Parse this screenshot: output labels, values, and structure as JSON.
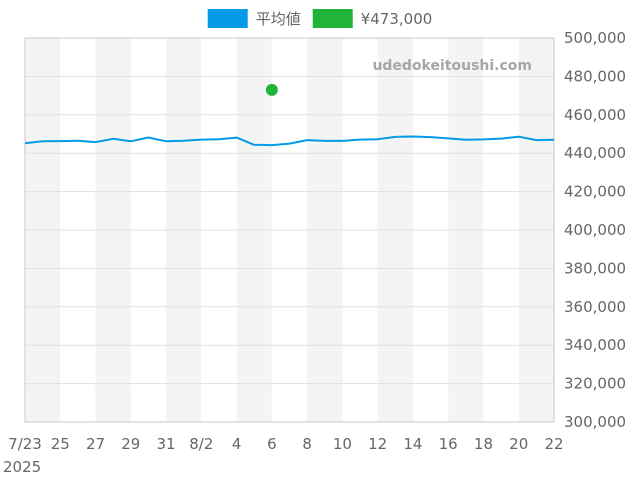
{
  "chart_data": {
    "type": "line",
    "watermark": "udedokeitoushi.com",
    "x_tick_labels": [
      "7/23",
      "25",
      "27",
      "29",
      "31",
      "8/2",
      "4",
      "6",
      "8",
      "10",
      "12",
      "14",
      "16",
      "18",
      "20",
      "22"
    ],
    "x_year_label": "2025",
    "x_dates": [
      "2025-07-23",
      "2025-07-24",
      "2025-07-25",
      "2025-07-26",
      "2025-07-27",
      "2025-07-28",
      "2025-07-29",
      "2025-07-30",
      "2025-07-31",
      "2025-08-01",
      "2025-08-02",
      "2025-08-03",
      "2025-08-04",
      "2025-08-05",
      "2025-08-06",
      "2025-08-07",
      "2025-08-08",
      "2025-08-09",
      "2025-08-10",
      "2025-08-11",
      "2025-08-12",
      "2025-08-13",
      "2025-08-14",
      "2025-08-15",
      "2025-08-16",
      "2025-08-17",
      "2025-08-18",
      "2025-08-19",
      "2025-08-20",
      "2025-08-21",
      "2025-08-22"
    ],
    "y_tick_labels": [
      "500,000",
      "480,000",
      "460,000",
      "440,000",
      "420,000",
      "400,000",
      "380,000",
      "360,000",
      "340,000",
      "320,000",
      "300,000"
    ],
    "ylim": [
      300000,
      500000
    ],
    "grid": true,
    "legend_position": "top-center",
    "series": [
      {
        "name": "平均値",
        "color": "#039be5",
        "kind": "line",
        "values": [
          445200,
          446200,
          446300,
          446500,
          445800,
          447500,
          446200,
          448200,
          446200,
          446500,
          447100,
          447300,
          448100,
          444400,
          444200,
          445000,
          446800,
          446400,
          446400,
          447100,
          447300,
          448500,
          448700,
          448400,
          447700,
          447000,
          447200,
          447600,
          448600,
          446800,
          447000
        ]
      },
      {
        "name": "¥473,000",
        "color": "#22b33b",
        "kind": "point",
        "points": [
          {
            "x": "2025-08-06",
            "y": 473000
          }
        ]
      }
    ]
  }
}
